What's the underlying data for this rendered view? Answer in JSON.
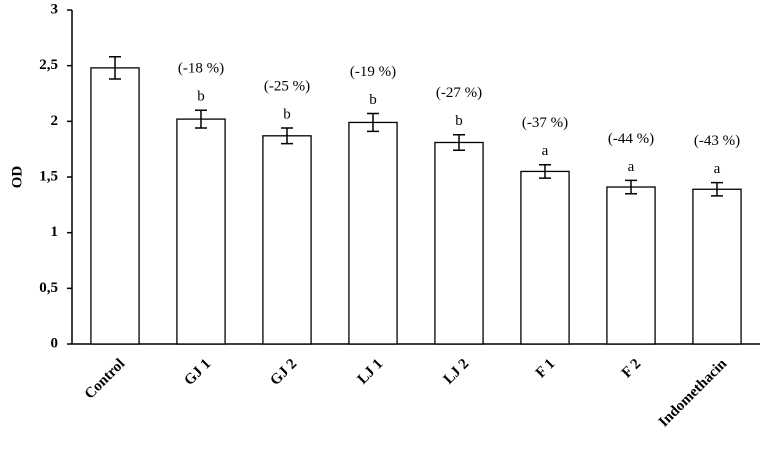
{
  "chart_data": {
    "type": "bar",
    "y_label": "OD",
    "categories": [
      "Control",
      "GJ 1",
      "GJ 2",
      "LJ 1",
      "LJ 2",
      "F 1",
      "F 2",
      "Indomethacin"
    ],
    "values": [
      2.48,
      2.02,
      1.87,
      1.99,
      1.81,
      1.55,
      1.41,
      1.39
    ],
    "errors": [
      0.1,
      0.08,
      0.07,
      0.08,
      0.07,
      0.06,
      0.06,
      0.06
    ],
    "annotations": [
      null,
      "(-18 %)",
      "(-25 %)",
      "(-19 %)",
      "(-27 %)",
      "(-37 %)",
      "(-44 %)",
      "(-43 %)"
    ],
    "letters": [
      null,
      "b",
      "b",
      "b",
      "b",
      "a",
      "a",
      "a"
    ],
    "color": "#ffffff",
    "edge_color": "#000000",
    "ylim": [
      0,
      3
    ],
    "yticks": [
      0,
      {
        "value": 0.5,
        "label": "0,5"
      },
      1,
      {
        "value": 1.5,
        "label": "1,5"
      },
      2,
      {
        "value": 2.5,
        "label": "2,5"
      },
      3
    ],
    "grid": false
  }
}
